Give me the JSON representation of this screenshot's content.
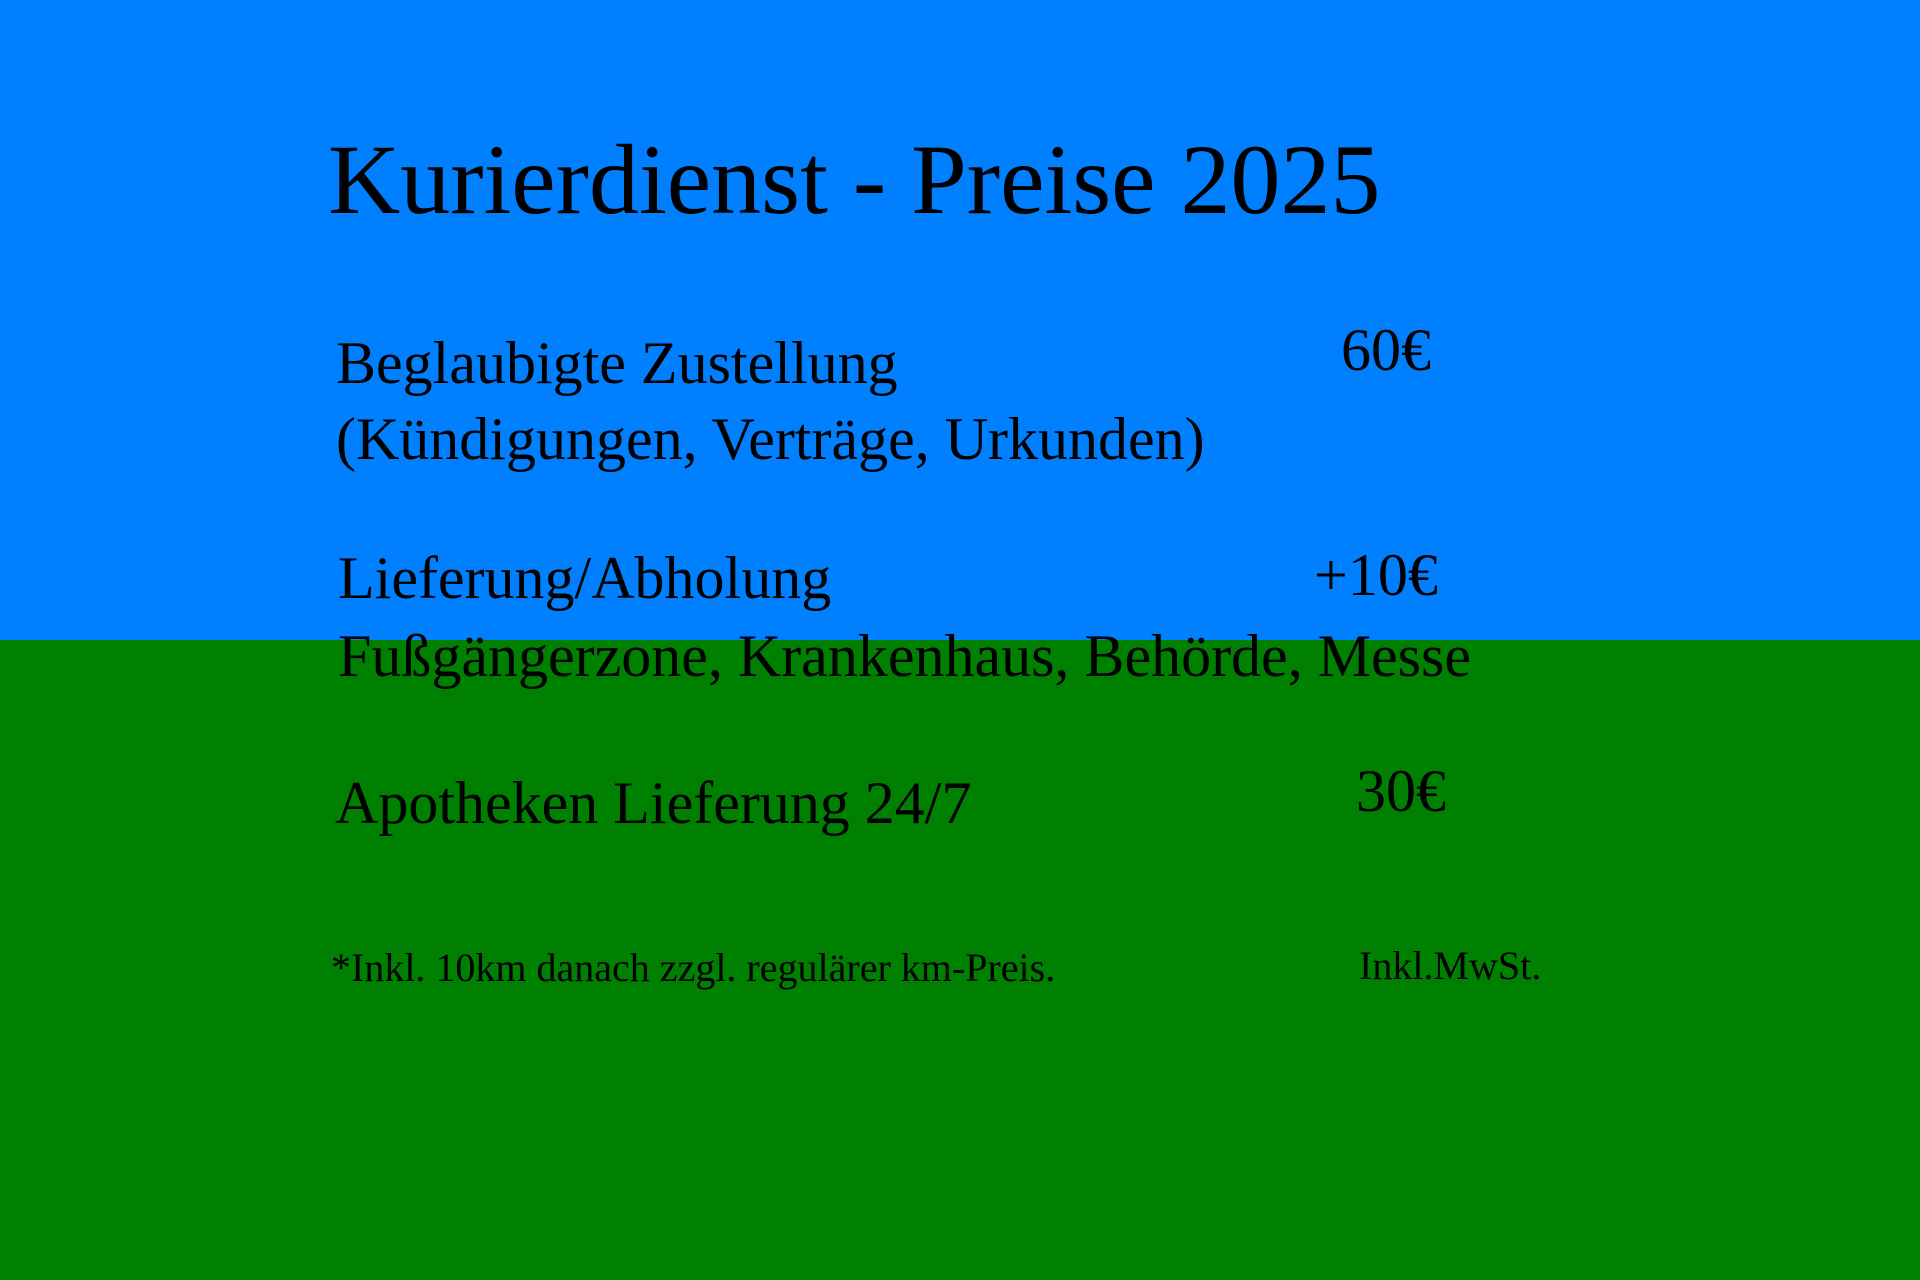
{
  "colors": {
    "top_background": "#0080FF",
    "bottom_background": "#008000",
    "text": "#000000"
  },
  "title": "Kurierdienst - Preise 2025",
  "items": [
    {
      "label": "Beglaubigte Zustellung",
      "detail": "(Kündigungen, Verträge, Urkunden)",
      "price": "60€"
    },
    {
      "label": "Lieferung/Abholung",
      "detail": "Fußgängerzone, Krankenhaus, Behörde, Messe",
      "price": "+10€"
    },
    {
      "label": "Apotheken Lieferung 24/7",
      "price": "30€"
    }
  ],
  "footnote": "*Inkl. 10km danach zzgl. regulärer km-Preis.",
  "tax_note": "Inkl.MwSt."
}
